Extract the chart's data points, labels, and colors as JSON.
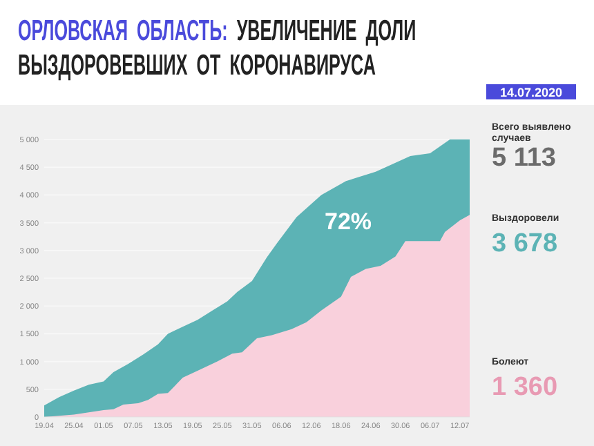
{
  "chart_data": {
    "type": "area",
    "title": "ОРЛОВСКАЯ ОБЛАСТЬ: УВЕЛИЧЕНИЕ ДОЛИ ВЫЗДОРОВЕВШИХ ОТ КОРОНАВИРУСА",
    "series": [
      {
        "color": "#5cb3b5",
        "x": [
          "--04-19",
          "--04-22",
          "--04-25",
          "--04-28",
          "--05-01",
          "--05-03",
          "--05-06",
          "--05-09",
          "--05-12",
          "--05-14",
          "--05-17",
          "--05-20",
          "--05-23",
          "--05-26",
          "--05-28",
          "--05-31",
          "--06-03",
          "--06-05",
          "--06-09",
          "--06-14",
          "--06-19",
          "--06-25",
          "--07-02",
          "--07-06",
          "--07-10",
          "--07-14"
        ],
        "values": [
          208,
          358,
          475,
          583,
          640,
          808,
          958,
          1125,
          1308,
          1500,
          1625,
          1750,
          1917,
          2083,
          2250,
          2450,
          2875,
          3125,
          3600,
          4000,
          4250,
          4420,
          4700,
          4750,
          5000,
          5000
        ]
      },
      {
        "color": "#f9d0dc",
        "x": [
          "--04-19",
          "--04-25",
          "--05-01",
          "--05-03",
          "--05-05",
          "--05-08",
          "--05-10",
          "--05-12",
          "--05-14",
          "--05-17",
          "--05-20",
          "--05-24",
          "--05-27",
          "--05-29",
          "--06-01",
          "--06-04",
          "--06-08",
          "--06-11",
          "--06-14",
          "--06-18",
          "--06-20",
          "--06-23",
          "--06-26",
          "--06-29",
          "--07-01",
          "--07-08",
          "--07-09",
          "--07-12",
          "--07-14"
        ],
        "values": [
          0,
          42,
          125,
          140,
          225,
          250,
          308,
          417,
          433,
          708,
          833,
          1000,
          1142,
          1167,
          1417,
          1475,
          1583,
          1708,
          1917,
          2167,
          2525,
          2667,
          2725,
          2892,
          3167,
          3167,
          3333,
          3542,
          3640
        ]
      }
    ],
    "xlim": [
      "--04-19",
      "--07-14"
    ],
    "xticks": [
      {
        "value": "--04-19",
        "label": "19.04"
      },
      {
        "value": "--04-25",
        "label": "25.04"
      },
      {
        "value": "--05-01",
        "label": "01.05"
      },
      {
        "value": "--05-07",
        "label": "07.05"
      },
      {
        "value": "--05-13",
        "label": "13.05"
      },
      {
        "value": "--05-19",
        "label": "19.05"
      },
      {
        "value": "--05-25",
        "label": "25.05"
      },
      {
        "value": "--05-31",
        "label": "31.05"
      },
      {
        "value": "--06-06",
        "label": "06.06"
      },
      {
        "value": "--06-12",
        "label": "12.06"
      },
      {
        "value": "--06-18",
        "label": "18.06"
      },
      {
        "value": "--06-24",
        "label": "24.06"
      },
      {
        "value": "--06-30",
        "label": "30.06"
      },
      {
        "value": "--07-06",
        "label": "06.07"
      },
      {
        "value": "--07-12",
        "label": "12.07"
      }
    ],
    "ylim": [
      0,
      5000
    ],
    "yticks": [
      0,
      500,
      {
        "value": 1000,
        "label": "1 000"
      },
      {
        "value": 1500,
        "label": "1 500"
      },
      {
        "value": 2000,
        "label": "2 000"
      },
      {
        "value": 2500,
        "label": "2 500"
      },
      {
        "value": 3000,
        "label": "3 000"
      },
      {
        "value": 3500,
        "label": "3 500"
      },
      {
        "value": 4000,
        "label": "4 000"
      },
      {
        "value": 4500,
        "label": "4 500"
      },
      {
        "value": 5000,
        "label": "5 000"
      }
    ],
    "grid": "y",
    "annotations": [
      "72%",
      "14.07.2020",
      "Всего выявлено случаев",
      "5 113",
      "Выздоровели",
      "3 678",
      "Болеют",
      "1 360"
    ]
  }
}
